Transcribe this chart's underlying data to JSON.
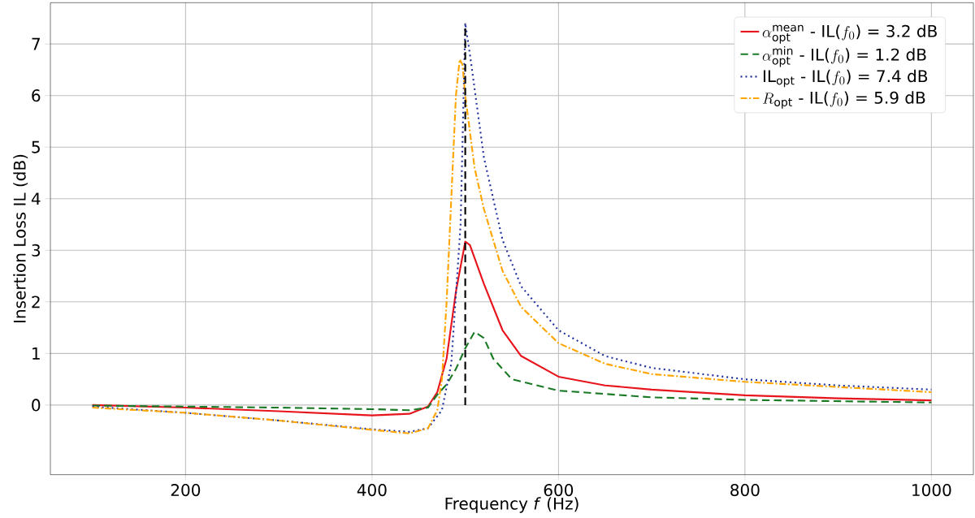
{
  "chart_data": {
    "type": "line",
    "xlabel": "Frequency *f* (Hz)",
    "ylabel": "Insertion Loss IL (dB)",
    "xlim": [
      55,
      1045
    ],
    "ylim": [
      -1.35,
      7.8
    ],
    "xticks": [
      200,
      400,
      600,
      800,
      1000
    ],
    "yticks": [
      0,
      1,
      2,
      3,
      4,
      5,
      6,
      7
    ],
    "grid": true,
    "legend": "top right",
    "marker": "none",
    "series": [
      {
        "name": "\\alpha_{\\mathrm{opt}}^{\\mathrm{mean}}\\mbox{ - IL(}f_0\\mbox{) = 3.2 dB}",
        "color": "#e8141c",
        "line_style": "solid",
        "x": [
          100,
          200,
          300,
          400,
          440,
          460,
          470,
          480,
          490,
          500,
          505,
          520,
          540,
          560,
          600,
          650,
          700,
          800,
          900,
          1000
        ],
        "values": [
          0,
          -0.05,
          -0.12,
          -0.2,
          -0.17,
          -0.03,
          0.25,
          0.9,
          2.2,
          3.17,
          3.1,
          2.35,
          1.45,
          0.95,
          0.55,
          0.38,
          0.3,
          0.19,
          0.13,
          0.09
        ]
      },
      {
        "name": "\\alpha_{\\mathrm{opt}}^{\\mathrm{min}}\\mbox{ - IL(}f_0\\mbox{) = 1.2 dB}",
        "color": "#1a7a26",
        "line_style": "dashed",
        "x": [
          100,
          200,
          300,
          400,
          440,
          460,
          470,
          480,
          490,
          500,
          510,
          520,
          530,
          550,
          600,
          700,
          800,
          1000
        ],
        "values": [
          -0.01,
          -0.03,
          -0.05,
          -0.08,
          -0.1,
          -0.05,
          0.2,
          0.4,
          0.7,
          1.1,
          1.42,
          1.3,
          0.9,
          0.5,
          0.28,
          0.15,
          0.1,
          0.05
        ]
      },
      {
        "name": "\\mbox{IL}_{\\mathrm{opt}}\\mbox{ - IL(}f_0\\mbox{) = 7.4 dB}",
        "color": "#1f2f9e",
        "line_style": "dotted",
        "x": [
          100,
          200,
          300,
          400,
          440,
          460,
          475,
          485,
          495,
          500,
          505,
          520,
          540,
          560,
          600,
          650,
          700,
          800,
          900,
          1000
        ],
        "values": [
          -0.03,
          -0.15,
          -0.3,
          -0.47,
          -0.52,
          -0.45,
          -0.1,
          0.8,
          3.5,
          7.4,
          6.8,
          4.8,
          3.2,
          2.3,
          1.45,
          0.95,
          0.72,
          0.5,
          0.38,
          0.3
        ]
      },
      {
        "name": "R_{\\mathrm{opt}}\\mbox{ - IL(}f_0\\mbox{) = 5.9 dB}",
        "color": "#ffa500",
        "line_style": "dashdot",
        "x": [
          100,
          200,
          300,
          400,
          440,
          460,
          470,
          475,
          480,
          485,
          490,
          494,
          497,
          500,
          510,
          520,
          540,
          560,
          600,
          650,
          700,
          800,
          900,
          1000
        ],
        "values": [
          -0.05,
          -0.15,
          -0.3,
          -0.48,
          -0.55,
          -0.45,
          -0.1,
          0.5,
          2.0,
          4.0,
          6.0,
          6.7,
          6.6,
          6.0,
          4.6,
          3.8,
          2.6,
          1.9,
          1.2,
          0.8,
          0.6,
          0.45,
          0.35,
          0.25
        ]
      },
      {
        "color": "#000000",
        "line_style": "dashed",
        "x": [
          500,
          500
        ],
        "values": [
          0,
          7.4
        ]
      }
    ]
  }
}
